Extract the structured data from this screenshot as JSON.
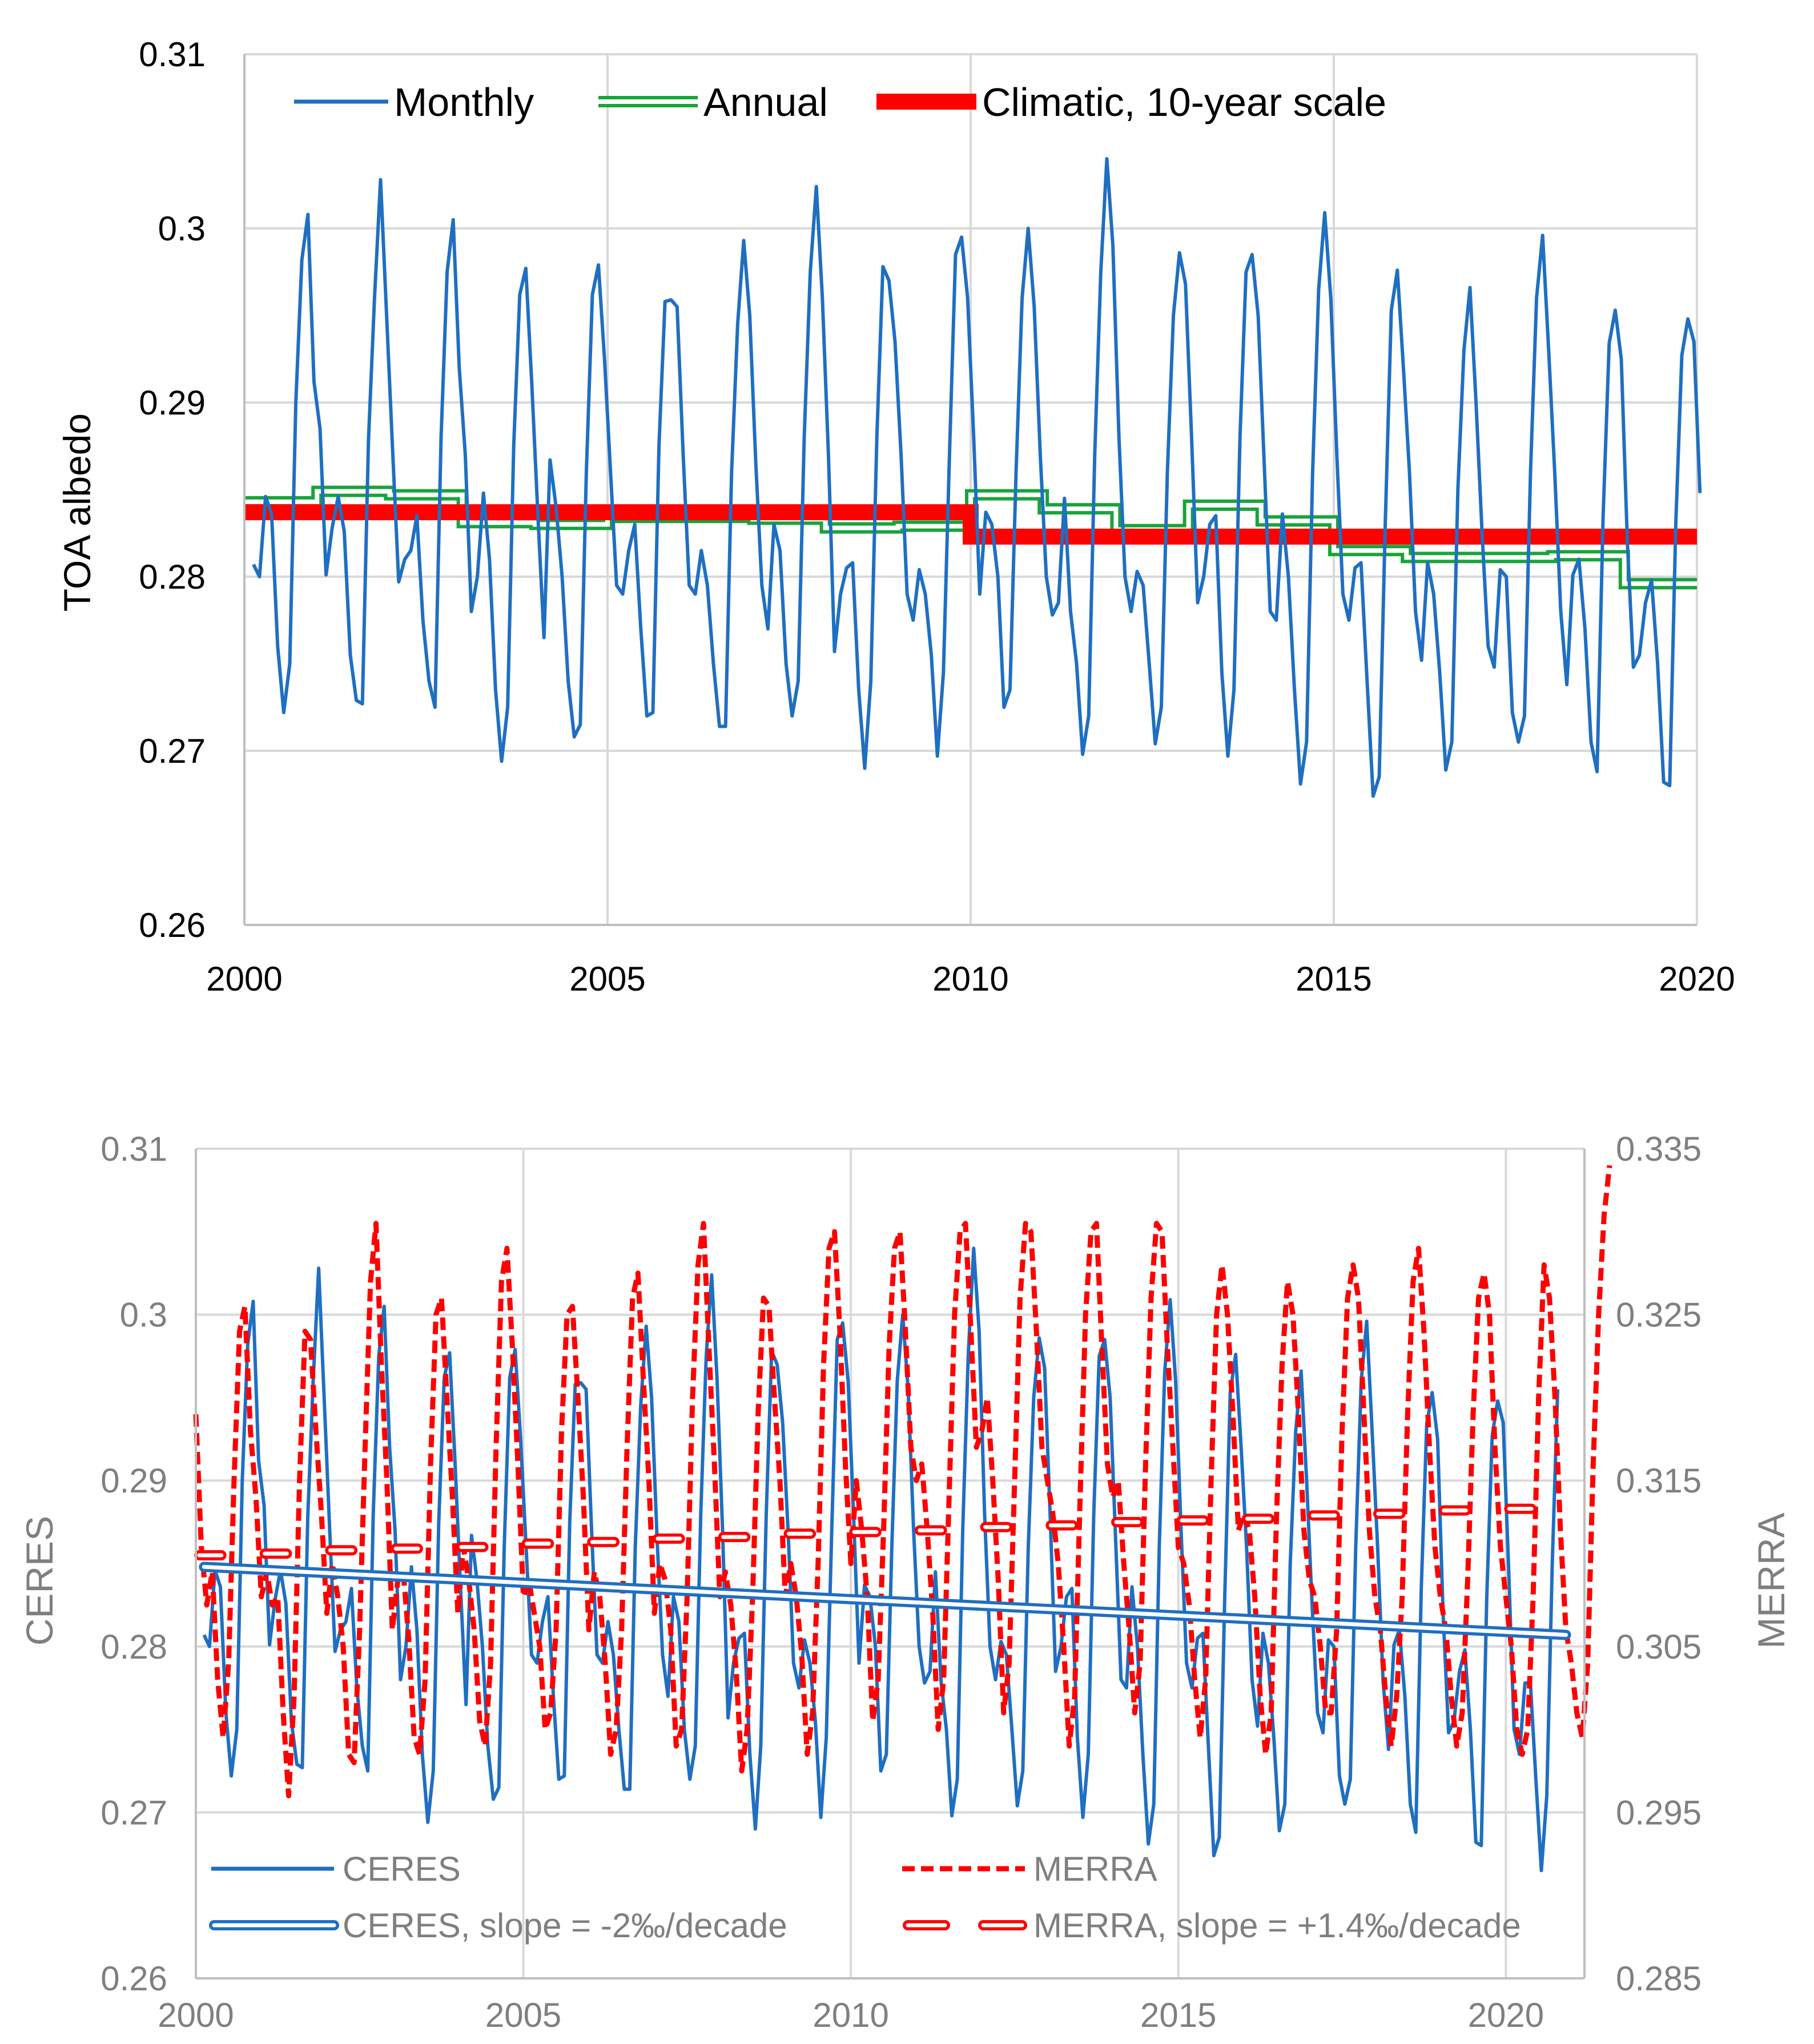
{
  "chart_data": [
    {
      "type": "line",
      "ylabel": "TOA albedo",
      "xlabel": "",
      "xlim": [
        2000,
        2020
      ],
      "ylim": [
        0.26,
        0.31
      ],
      "x_ticks": [
        "2000",
        "2005",
        "2010",
        "2015",
        "2020"
      ],
      "y_ticks": [
        "0.26",
        "0.27",
        "0.28",
        "0.29",
        "0.3",
        "0.31"
      ],
      "legend_position": "top",
      "colors": {
        "monthly": "#1f6fc1",
        "annual": "#1aa33a",
        "climatic": "#ff0000"
      },
      "legend": [
        "Monthly",
        "Annual",
        "Climatic, 10-year scale"
      ],
      "series": [
        {
          "name": "Monthly",
          "start": 2000.125,
          "step": 0.083333,
          "values": [
            0.2807,
            0.28,
            0.2846,
            0.2836,
            0.276,
            0.2722,
            0.275,
            0.29,
            0.2982,
            0.3008,
            0.2912,
            0.2885,
            0.2801,
            0.2828,
            0.2846,
            0.2826,
            0.2755,
            0.2729,
            0.2727,
            0.2878,
            0.296,
            0.3028,
            0.295,
            0.2872,
            0.2797,
            0.281,
            0.2815,
            0.2835,
            0.2775,
            0.274,
            0.2725,
            0.288,
            0.2975,
            0.3005,
            0.292,
            0.287,
            0.278,
            0.28,
            0.2848,
            0.281,
            0.2735,
            0.2694,
            0.2725,
            0.2875,
            0.2962,
            0.2977,
            0.291,
            0.2835,
            0.2765,
            0.2867,
            0.284,
            0.28,
            0.274,
            0.2708,
            0.2715,
            0.286,
            0.2962,
            0.2979,
            0.2925,
            0.286,
            0.2795,
            0.279,
            0.2815,
            0.283,
            0.277,
            0.272,
            0.2722,
            0.2875,
            0.2958,
            0.2959,
            0.2955,
            0.287,
            0.2795,
            0.279,
            0.2815,
            0.2795,
            0.275,
            0.2714,
            0.2714,
            0.286,
            0.2945,
            0.2993,
            0.295,
            0.2865,
            0.2795,
            0.277,
            0.283,
            0.2815,
            0.275,
            0.272,
            0.274,
            0.288,
            0.2975,
            0.3024,
            0.296,
            0.287,
            0.2757,
            0.279,
            0.2805,
            0.2808,
            0.2735,
            0.269,
            0.274,
            0.288,
            0.2978,
            0.297,
            0.2935,
            0.287,
            0.279,
            0.2775,
            0.2804,
            0.279,
            0.2755,
            0.2697,
            0.2745,
            0.287,
            0.2985,
            0.2995,
            0.296,
            0.288,
            0.279,
            0.2837,
            0.283,
            0.28,
            0.2725,
            0.2735,
            0.286,
            0.296,
            0.3,
            0.2955,
            0.287,
            0.28,
            0.2778,
            0.2785,
            0.2845,
            0.278,
            0.275,
            0.2698,
            0.272,
            0.287,
            0.2975,
            0.304,
            0.299,
            0.288,
            0.28,
            0.278,
            0.2803,
            0.2795,
            0.275,
            0.2704,
            0.2725,
            0.286,
            0.295,
            0.2986,
            0.2968,
            0.288,
            0.2785,
            0.28,
            0.283,
            0.2835,
            0.2745,
            0.2697,
            0.2735,
            0.288,
            0.2975,
            0.2985,
            0.295,
            0.2865,
            0.278,
            0.2775,
            0.2836,
            0.28,
            0.2735,
            0.2681,
            0.2705,
            0.286,
            0.2965,
            0.3009,
            0.296,
            0.287,
            0.279,
            0.2775,
            0.2805,
            0.2808,
            0.274,
            0.2674,
            0.2685,
            0.283,
            0.2953,
            0.2976,
            0.292,
            0.286,
            0.278,
            0.2752,
            0.2808,
            0.279,
            0.2745,
            0.2689,
            0.2705,
            0.285,
            0.293,
            0.2966,
            0.29,
            0.2825,
            0.276,
            0.2748,
            0.2804,
            0.28,
            0.2722,
            0.2705,
            0.272,
            0.286,
            0.296,
            0.2996,
            0.293,
            0.286,
            0.278,
            0.2738,
            0.2801,
            0.281,
            0.277,
            0.2705,
            0.2688,
            0.2835,
            0.2934,
            0.2953,
            0.2925,
            0.282,
            0.2748,
            0.2755,
            0.2785,
            0.2798,
            0.275,
            0.2682,
            0.268,
            0.283,
            0.2927,
            0.2948,
            0.2935,
            0.2848
          ]
        },
        {
          "name": "Annual",
          "years": [
            2000,
            2001,
            2002,
            2003,
            2004,
            2005,
            2006,
            2007,
            2008,
            2009,
            2010,
            2011,
            2012,
            2013,
            2014,
            2015,
            2016,
            2017,
            2018,
            2019
          ],
          "values": [
            0.2843,
            0.2849,
            0.2847,
            0.2831,
            0.283,
            0.2834,
            0.2834,
            0.2833,
            0.2828,
            0.2829,
            0.2847,
            0.2839,
            0.2827,
            0.2841,
            0.2832,
            0.2815,
            0.2811,
            0.2811,
            0.2812,
            0.2796
          ]
        },
        {
          "name": "Climatic, 10-year scale",
          "segments": [
            {
              "from": 2000,
              "to": 2010,
              "value": 0.2837
            },
            {
              "from": 2010,
              "to": 2020,
              "value": 0.2823
            }
          ]
        }
      ]
    },
    {
      "type": "line",
      "ylabel": "CERES",
      "y2label": "MERRA",
      "xlabel": "",
      "xlim": [
        2000,
        2021.2
      ],
      "ylim": [
        0.26,
        0.31
      ],
      "y2lim": [
        0.285,
        0.335
      ],
      "x_ticks": [
        "2000",
        "2005",
        "2010",
        "2015",
        "2020"
      ],
      "y_ticks": [
        "0.26",
        "0.27",
        "0.28",
        "0.29",
        "0.3",
        "0.31"
      ],
      "y2_ticks": [
        "0.285",
        "0.295",
        "0.305",
        "0.315",
        "0.325",
        "0.335"
      ],
      "legend_position": "bottom",
      "colors": {
        "ceres": "#1f6fc1",
        "merra": "#ff0000"
      },
      "legend": [
        "CERES",
        "MERRA",
        "CERES, slope = -2‰/decade",
        "MERRA, slope = +1.4‰/decade"
      ],
      "series": [
        {
          "name": "CERES",
          "axis": "left",
          "start": 2000.125,
          "step": 0.083333,
          "values": [
            0.2807,
            0.28,
            0.2846,
            0.2836,
            0.276,
            0.2722,
            0.275,
            0.29,
            0.2982,
            0.3008,
            0.2912,
            0.2885,
            0.2801,
            0.2828,
            0.2846,
            0.2826,
            0.2755,
            0.2729,
            0.2727,
            0.2878,
            0.296,
            0.3028,
            0.295,
            0.2872,
            0.2797,
            0.281,
            0.2815,
            0.2835,
            0.2775,
            0.274,
            0.2725,
            0.288,
            0.2975,
            0.3005,
            0.292,
            0.287,
            0.278,
            0.28,
            0.2848,
            0.281,
            0.2735,
            0.2694,
            0.2725,
            0.2875,
            0.2962,
            0.2977,
            0.291,
            0.2835,
            0.2765,
            0.2867,
            0.284,
            0.28,
            0.274,
            0.2708,
            0.2715,
            0.286,
            0.2962,
            0.2979,
            0.2925,
            0.286,
            0.2795,
            0.279,
            0.2815,
            0.283,
            0.277,
            0.272,
            0.2722,
            0.2875,
            0.2958,
            0.2959,
            0.2955,
            0.287,
            0.2795,
            0.279,
            0.2815,
            0.2795,
            0.275,
            0.2714,
            0.2714,
            0.286,
            0.2945,
            0.2993,
            0.295,
            0.2865,
            0.2795,
            0.277,
            0.283,
            0.2815,
            0.275,
            0.272,
            0.274,
            0.288,
            0.2975,
            0.3024,
            0.296,
            0.287,
            0.2757,
            0.279,
            0.2805,
            0.2808,
            0.2735,
            0.269,
            0.274,
            0.288,
            0.2978,
            0.297,
            0.2935,
            0.287,
            0.279,
            0.2775,
            0.2804,
            0.279,
            0.2755,
            0.2697,
            0.2745,
            0.287,
            0.2985,
            0.2995,
            0.296,
            0.288,
            0.279,
            0.2837,
            0.283,
            0.28,
            0.2725,
            0.2735,
            0.286,
            0.296,
            0.3,
            0.2955,
            0.287,
            0.28,
            0.2778,
            0.2785,
            0.2845,
            0.278,
            0.275,
            0.2698,
            0.272,
            0.287,
            0.2975,
            0.304,
            0.299,
            0.288,
            0.28,
            0.278,
            0.2803,
            0.2795,
            0.275,
            0.2704,
            0.2725,
            0.286,
            0.295,
            0.2986,
            0.2968,
            0.288,
            0.2785,
            0.28,
            0.283,
            0.2835,
            0.2745,
            0.2697,
            0.2735,
            0.288,
            0.2975,
            0.2985,
            0.295,
            0.2865,
            0.278,
            0.2775,
            0.2836,
            0.28,
            0.2735,
            0.2681,
            0.2705,
            0.286,
            0.2965,
            0.3009,
            0.296,
            0.287,
            0.279,
            0.2775,
            0.2805,
            0.2808,
            0.274,
            0.2674,
            0.2685,
            0.283,
            0.2953,
            0.2976,
            0.292,
            0.286,
            0.278,
            0.2752,
            0.2808,
            0.279,
            0.2745,
            0.2689,
            0.2705,
            0.285,
            0.293,
            0.2966,
            0.29,
            0.2825,
            0.276,
            0.2748,
            0.2804,
            0.28,
            0.2722,
            0.2705,
            0.272,
            0.286,
            0.296,
            0.2996,
            0.293,
            0.286,
            0.278,
            0.2738,
            0.2801,
            0.281,
            0.277,
            0.2705,
            0.2688,
            0.2835,
            0.2934,
            0.2953,
            0.2925,
            0.282,
            0.2748,
            0.2755,
            0.2785,
            0.2798,
            0.275,
            0.2682,
            0.268,
            0.283,
            0.2927,
            0.2948,
            0.2935,
            0.2848,
            0.275,
            0.2735,
            0.2778,
            0.2778,
            0.272,
            0.2665,
            0.271,
            0.285,
            0.2955
          ]
        },
        {
          "name": "MERRA",
          "axis": "right",
          "start": 2000.0,
          "step": 0.083333,
          "values": [
            0.319,
            0.311,
            0.3075,
            0.3095,
            0.303,
            0.2995,
            0.304,
            0.315,
            0.324,
            0.3255,
            0.318,
            0.314,
            0.308,
            0.3095,
            0.3075,
            0.308,
            0.301,
            0.296,
            0.302,
            0.315,
            0.324,
            0.3235,
            0.318,
            0.313,
            0.307,
            0.31,
            0.308,
            0.305,
            0.2985,
            0.298,
            0.306,
            0.317,
            0.327,
            0.3305,
            0.322,
            0.315,
            0.306,
            0.309,
            0.3095,
            0.3055,
            0.2995,
            0.2985,
            0.303,
            0.316,
            0.325,
            0.326,
            0.32,
            0.314,
            0.307,
            0.311,
            0.309,
            0.306,
            0.3005,
            0.299,
            0.304,
            0.317,
            0.327,
            0.329,
            0.323,
            0.316,
            0.308,
            0.309,
            0.307,
            0.305,
            0.3,
            0.301,
            0.306,
            0.318,
            0.325,
            0.3255,
            0.32,
            0.314,
            0.306,
            0.3095,
            0.308,
            0.304,
            0.2985,
            0.3,
            0.306,
            0.317,
            0.326,
            0.3275,
            0.321,
            0.315,
            0.307,
            0.31,
            0.309,
            0.306,
            0.299,
            0.3,
            0.308,
            0.32,
            0.328,
            0.3305,
            0.323,
            0.316,
            0.308,
            0.3095,
            0.3075,
            0.3035,
            0.2975,
            0.3,
            0.308,
            0.319,
            0.326,
            0.3255,
            0.32,
            0.315,
            0.308,
            0.31,
            0.308,
            0.3045,
            0.2985,
            0.301,
            0.31,
            0.322,
            0.329,
            0.33,
            0.324,
            0.316,
            0.31,
            0.315,
            0.312,
            0.308,
            0.3005,
            0.303,
            0.312,
            0.323,
            0.329,
            0.33,
            0.324,
            0.317,
            0.315,
            0.316,
            0.312,
            0.307,
            0.3,
            0.303,
            0.314,
            0.325,
            0.33,
            0.3305,
            0.324,
            0.317,
            0.318,
            0.32,
            0.315,
            0.309,
            0.301,
            0.304,
            0.315,
            0.326,
            0.3305,
            0.33,
            0.324,
            0.317,
            0.315,
            0.313,
            0.31,
            0.305,
            0.299,
            0.302,
            0.314,
            0.325,
            0.33,
            0.3305,
            0.323,
            0.316,
            0.314,
            0.315,
            0.31,
            0.306,
            0.301,
            0.304,
            0.316,
            0.326,
            0.3305,
            0.33,
            0.323,
            0.317,
            0.311,
            0.31,
            0.3075,
            0.303,
            0.2995,
            0.303,
            0.315,
            0.325,
            0.328,
            0.325,
            0.319,
            0.312,
            0.313,
            0.312,
            0.308,
            0.302,
            0.2985,
            0.301,
            0.313,
            0.322,
            0.327,
            0.325,
            0.319,
            0.312,
            0.309,
            0.308,
            0.305,
            0.301,
            0.301,
            0.306,
            0.318,
            0.326,
            0.328,
            0.326,
            0.319,
            0.312,
            0.308,
            0.306,
            0.302,
            0.299,
            0.302,
            0.308,
            0.319,
            0.327,
            0.329,
            0.324,
            0.317,
            0.311,
            0.308,
            0.306,
            0.302,
            0.299,
            0.301,
            0.309,
            0.319,
            0.326,
            0.3275,
            0.325,
            0.317,
            0.311,
            0.308,
            0.305,
            0.3,
            0.2985,
            0.3,
            0.308,
            0.32,
            0.328,
            0.326,
            0.32,
            0.312,
            0.306,
            0.304,
            0.301,
            0.2995,
            0.304,
            0.316,
            0.325,
            0.331,
            0.334
          ]
        },
        {
          "name": "CERES, slope = -2‰/decade",
          "axis": "left",
          "x": [
            2000.125,
            2020.917
          ],
          "values": [
            0.2848,
            0.2807
          ]
        },
        {
          "name": "MERRA, slope = +1.4‰/decade",
          "axis": "right",
          "years": [
            2000,
            2001,
            2002,
            2003,
            2004,
            2005,
            2006,
            2007,
            2008,
            2009,
            2010,
            2011,
            2012,
            2013,
            2014,
            2015,
            2016,
            2017,
            2018,
            2019,
            2020
          ],
          "values": [
            0.3105,
            0.3106,
            0.3108,
            0.3109,
            0.311,
            0.3112,
            0.3113,
            0.3115,
            0.3116,
            0.3118,
            0.3119,
            0.312,
            0.3122,
            0.3123,
            0.3125,
            0.3126,
            0.3127,
            0.3129,
            0.313,
            0.3132,
            0.3133
          ]
        }
      ]
    }
  ]
}
